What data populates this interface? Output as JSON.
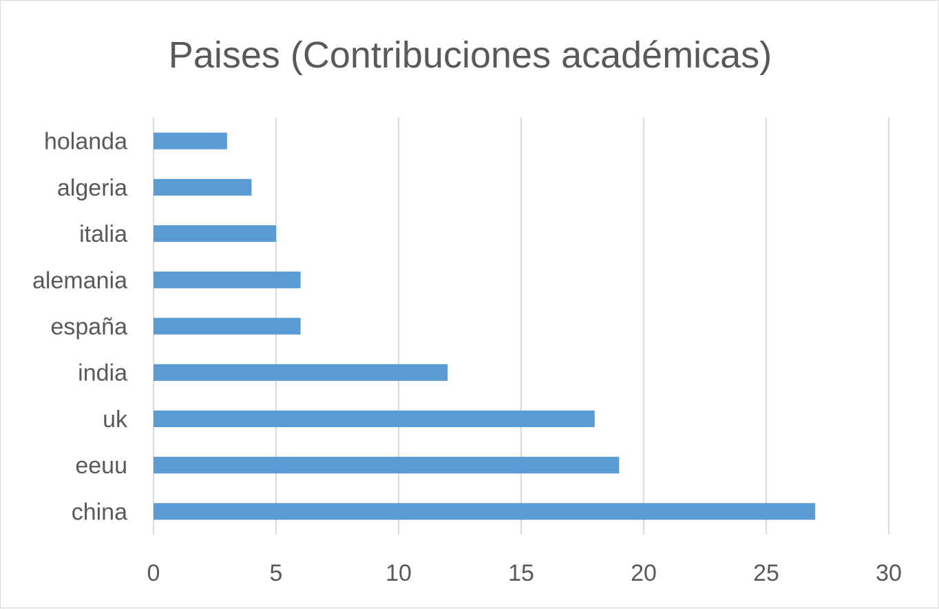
{
  "chart_data": {
    "type": "bar",
    "orientation": "horizontal",
    "title": "Paises (Contribuciones académicas)",
    "xlabel": "",
    "ylabel": "",
    "categories": [
      "holanda",
      "algeria",
      "italia",
      "alemania",
      "españa",
      "india",
      "uk",
      "eeuu",
      "china"
    ],
    "values": [
      3,
      4,
      5,
      6,
      6,
      12,
      18,
      19,
      27
    ],
    "xlim": [
      0,
      30
    ],
    "xticks": [
      0,
      5,
      10,
      15,
      20,
      25,
      30
    ],
    "grid": true,
    "legend": "none",
    "bar_color": "#5b9bd5"
  }
}
